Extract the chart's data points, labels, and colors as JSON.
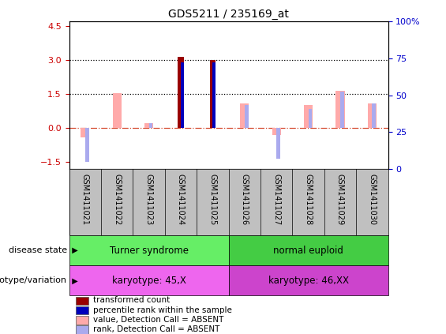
{
  "title": "GDS5211 / 235169_at",
  "samples": [
    "GSM1411021",
    "GSM1411022",
    "GSM1411023",
    "GSM1411024",
    "GSM1411025",
    "GSM1411026",
    "GSM1411027",
    "GSM1411028",
    "GSM1411029",
    "GSM1411030"
  ],
  "transformed_count": [
    null,
    null,
    null,
    3.15,
    3.0,
    null,
    null,
    null,
    null,
    null
  ],
  "percentile_rank": [
    null,
    null,
    null,
    2.9,
    2.9,
    null,
    null,
    null,
    null,
    null
  ],
  "value_absent": [
    -0.4,
    1.55,
    0.2,
    null,
    null,
    1.1,
    -0.3,
    1.0,
    1.65,
    1.1
  ],
  "rank_absent": [
    -1.5,
    null,
    0.2,
    null,
    null,
    1.0,
    -1.35,
    0.85,
    1.6,
    1.1
  ],
  "ylim_left": [
    -1.8,
    4.7
  ],
  "ylim_right": [
    0,
    100
  ],
  "yticks_left": [
    -1.5,
    0.0,
    1.5,
    3.0,
    4.5
  ],
  "yticks_right": [
    0,
    25,
    50,
    75,
    100
  ],
  "color_transformed": "#990000",
  "color_percentile": "#0000bb",
  "color_value_absent": "#ffaaaa",
  "color_rank_absent": "#aaaaee",
  "color_tick_left": "#cc0000",
  "color_tick_right": "#0000cc",
  "color_sample_bg": "#c0c0c0",
  "disease_groups": [
    {
      "label": "Turner syndrome",
      "start": 0,
      "end": 5,
      "color": "#66ee66"
    },
    {
      "label": "normal euploid",
      "start": 5,
      "end": 10,
      "color": "#44cc44"
    }
  ],
  "genotype_groups": [
    {
      "label": "karyotype: 45,X",
      "start": 0,
      "end": 5,
      "color": "#ee66ee"
    },
    {
      "label": "karyotype: 46,XX",
      "start": 5,
      "end": 10,
      "color": "#cc44cc"
    }
  ],
  "legend_items": [
    {
      "label": "transformed count",
      "color": "#990000"
    },
    {
      "label": "percentile rank within the sample",
      "color": "#0000bb"
    },
    {
      "label": "value, Detection Call = ABSENT",
      "color": "#ffaaaa"
    },
    {
      "label": "rank, Detection Call = ABSENT",
      "color": "#aaaaee"
    }
  ]
}
